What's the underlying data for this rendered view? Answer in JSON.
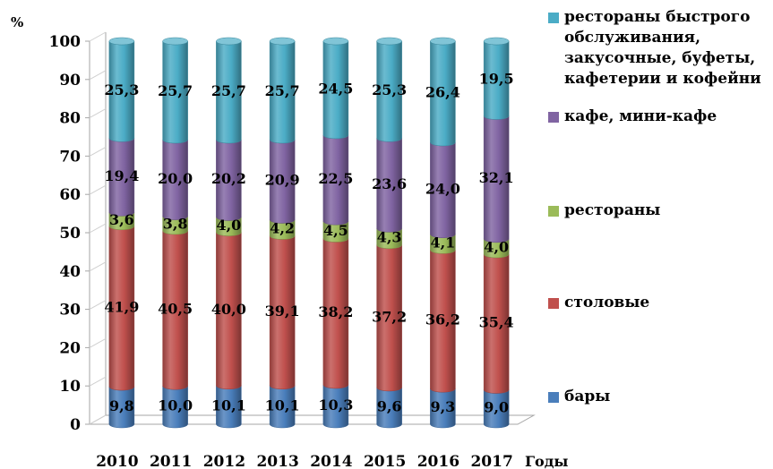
{
  "chart_data": {
    "type": "bar",
    "stacked": true,
    "categories": [
      "2010",
      "2011",
      "2012",
      "2013",
      "2014",
      "2015",
      "2016",
      "2017"
    ],
    "series": [
      {
        "name": "бары",
        "color": "#4a7ebb",
        "values": [
          9.8,
          10.0,
          10.1,
          10.1,
          10.3,
          9.6,
          9.3,
          9.0
        ],
        "labels": [
          "9,8",
          "10,0",
          "10,1",
          "10,1",
          "10,3",
          "9,6",
          "9,3",
          "9,0"
        ]
      },
      {
        "name": "столовые",
        "color": "#c0504d",
        "values": [
          41.9,
          40.5,
          40.0,
          39.1,
          38.2,
          37.2,
          36.2,
          35.4
        ],
        "labels": [
          "41,9",
          "40,5",
          "40,0",
          "39,1",
          "38,2",
          "37,2",
          "36,2",
          "35,4"
        ]
      },
      {
        "name": "рестораны",
        "color": "#9bbb59",
        "values": [
          3.6,
          3.8,
          4.0,
          4.2,
          4.5,
          4.3,
          4.1,
          4.0
        ],
        "labels": [
          "3,6",
          "3,8",
          "4,0",
          "4,2",
          "4,5",
          "4,3",
          "4,1",
          "4,0"
        ]
      },
      {
        "name": "кафе, мини-кафе",
        "color": "#8064a2",
        "values": [
          19.4,
          20.0,
          20.2,
          20.9,
          22.5,
          23.6,
          24.0,
          32.1
        ],
        "labels": [
          "19,4",
          "20,0",
          "20,2",
          "20,9",
          "22,5",
          "23,6",
          "24,0",
          "32,1"
        ]
      },
      {
        "name": "рестораны быстрого обслуживания, закусочные, буфеты, кафетерии и кофейни",
        "color": "#4bacc6",
        "values": [
          25.3,
          25.7,
          25.7,
          25.7,
          24.5,
          25.3,
          26.4,
          19.5
        ],
        "labels": [
          "25,3",
          "25,7",
          "25,7",
          "25,7",
          "24,5",
          "25,3",
          "26,4",
          "19,5"
        ]
      }
    ],
    "ylabel": "%",
    "xlabel": "Годы",
    "ylim": [
      0,
      100
    ],
    "yticks": [
      "0",
      "10",
      "20",
      "30",
      "40",
      "50",
      "60",
      "70",
      "80",
      "90",
      "100"
    ],
    "grid": false,
    "legend_position": "right"
  }
}
